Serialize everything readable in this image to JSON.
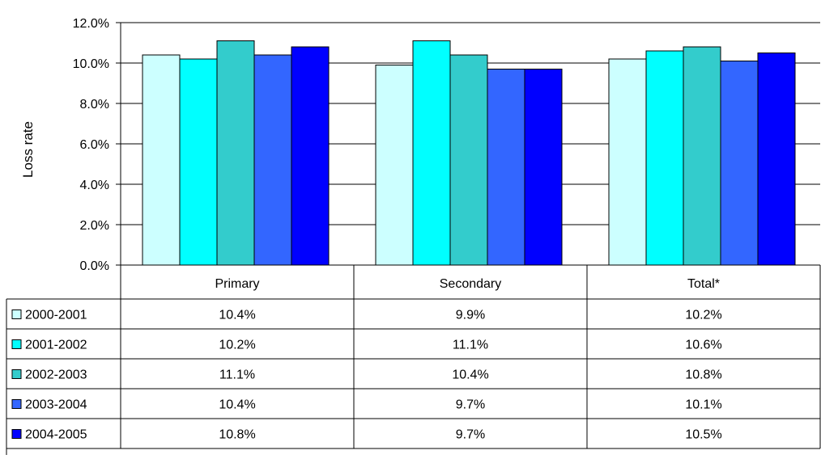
{
  "chart_data": {
    "type": "bar",
    "ylabel": "Loss rate",
    "ylim": [
      0,
      0.12
    ],
    "yticks": [
      {
        "value": 0.0,
        "label": "0.0%"
      },
      {
        "value": 0.02,
        "label": "2.0%"
      },
      {
        "value": 0.04,
        "label": "4.0%"
      },
      {
        "value": 0.06,
        "label": "6.0%"
      },
      {
        "value": 0.08,
        "label": "8.0%"
      },
      {
        "value": 0.1,
        "label": "10.0%"
      },
      {
        "value": 0.12,
        "label": "12.0%"
      }
    ],
    "grid": true,
    "categories": [
      "Primary",
      "Secondary",
      "Total*"
    ],
    "series": [
      {
        "name": "2000-2001",
        "color": "#CCFFFF",
        "values": [
          0.104,
          0.099,
          0.102
        ],
        "labels": [
          "10.4%",
          "9.9%",
          "10.2%"
        ]
      },
      {
        "name": "2001-2002",
        "color": "#00FFFF",
        "values": [
          0.102,
          0.111,
          0.106
        ],
        "labels": [
          "10.2%",
          "11.1%",
          "10.6%"
        ]
      },
      {
        "name": "2002-2003",
        "color": "#33CCCC",
        "values": [
          0.111,
          0.104,
          0.108
        ],
        "labels": [
          "11.1%",
          "10.4%",
          "10.8%"
        ]
      },
      {
        "name": "2003-2004",
        "color": "#3366FF",
        "values": [
          0.104,
          0.097,
          0.101
        ],
        "labels": [
          "10.4%",
          "9.7%",
          "10.1%"
        ]
      },
      {
        "name": "2004-2005",
        "color": "#0000FF",
        "values": [
          0.108,
          0.097,
          0.105
        ],
        "labels": [
          "10.8%",
          "9.7%",
          "10.5%"
        ]
      }
    ],
    "legend_placement": "data-table-left"
  }
}
